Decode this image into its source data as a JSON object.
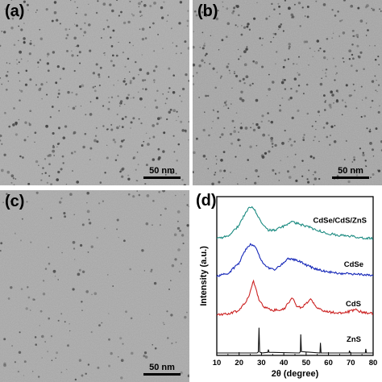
{
  "panels": [
    {
      "label": "(a)",
      "scale": "50 nm"
    },
    {
      "label": "(b)",
      "scale": "50 nm"
    },
    {
      "label": "(c)",
      "scale": "50 nm"
    }
  ],
  "chart": {
    "label": "(d)"
  },
  "chart_data": {
    "type": "line",
    "title": "",
    "xlabel": "2θ (degree)",
    "ylabel": "Intensity (a.u.)",
    "xlim": [
      10,
      80
    ],
    "xticks": [
      10,
      20,
      30,
      40,
      50,
      60,
      70,
      80
    ],
    "yticks_shown": false,
    "legend": "inline labels on right",
    "series": [
      {
        "name": "CdSe/CdS/ZnS",
        "color": "#1a8a80",
        "offset": 3.0,
        "points": [
          [
            10,
            0.05
          ],
          [
            15,
            0.12
          ],
          [
            20,
            0.45
          ],
          [
            23,
            0.85
          ],
          [
            25,
            1.0
          ],
          [
            27,
            0.92
          ],
          [
            30,
            0.5
          ],
          [
            33,
            0.3
          ],
          [
            36,
            0.3
          ],
          [
            40,
            0.42
          ],
          [
            43,
            0.55
          ],
          [
            46,
            0.5
          ],
          [
            50,
            0.42
          ],
          [
            55,
            0.3
          ],
          [
            60,
            0.2
          ],
          [
            65,
            0.15
          ],
          [
            70,
            0.12
          ],
          [
            75,
            0.08
          ],
          [
            80,
            0.05
          ]
        ]
      },
      {
        "name": "CdSe",
        "color": "#1426b8",
        "offset": 2.0,
        "points": [
          [
            10,
            0.05
          ],
          [
            15,
            0.12
          ],
          [
            20,
            0.45
          ],
          [
            23,
            0.85
          ],
          [
            25,
            1.0
          ],
          [
            27,
            0.95
          ],
          [
            30,
            0.5
          ],
          [
            33,
            0.3
          ],
          [
            36,
            0.25
          ],
          [
            40,
            0.45
          ],
          [
            42,
            0.58
          ],
          [
            44,
            0.55
          ],
          [
            47,
            0.5
          ],
          [
            50,
            0.38
          ],
          [
            55,
            0.25
          ],
          [
            60,
            0.18
          ],
          [
            65,
            0.14
          ],
          [
            70,
            0.12
          ],
          [
            75,
            0.1
          ],
          [
            80,
            0.06
          ]
        ]
      },
      {
        "name": "CdS",
        "color": "#cc2222",
        "offset": 1.0,
        "points": [
          [
            10,
            0.02
          ],
          [
            15,
            0.05
          ],
          [
            20,
            0.15
          ],
          [
            24,
            0.5
          ],
          [
            25.5,
            0.85
          ],
          [
            26.5,
            1.0
          ],
          [
            27.5,
            0.8
          ],
          [
            29,
            0.45
          ],
          [
            31,
            0.25
          ],
          [
            35,
            0.15
          ],
          [
            40,
            0.18
          ],
          [
            43,
            0.45
          ],
          [
            44,
            0.52
          ],
          [
            45.5,
            0.3
          ],
          [
            48,
            0.22
          ],
          [
            50,
            0.35
          ],
          [
            52,
            0.48
          ],
          [
            53.5,
            0.35
          ],
          [
            56,
            0.18
          ],
          [
            60,
            0.1
          ],
          [
            65,
            0.08
          ],
          [
            70,
            0.12
          ],
          [
            72,
            0.18
          ],
          [
            75,
            0.1
          ],
          [
            80,
            0.05
          ]
        ]
      },
      {
        "name": "ZnS",
        "color": "#111111",
        "offset": 0.0,
        "points": [
          [
            10,
            0.0
          ],
          [
            28,
            0.0
          ],
          [
            28.6,
            0.03
          ],
          [
            28.9,
            0.75
          ],
          [
            29.2,
            0.03
          ],
          [
            30,
            0.0
          ],
          [
            32.8,
            0.02
          ],
          [
            33.1,
            0.1
          ],
          [
            33.4,
            0.02
          ],
          [
            47,
            0.0
          ],
          [
            47.4,
            0.04
          ],
          [
            47.6,
            0.55
          ],
          [
            47.9,
            0.04
          ],
          [
            56.2,
            0.0
          ],
          [
            56.4,
            0.3
          ],
          [
            56.7,
            0.0
          ],
          [
            69.2,
            0.0
          ],
          [
            69.4,
            0.07
          ],
          [
            69.7,
            0.0
          ],
          [
            76.5,
            0.0
          ],
          [
            76.7,
            0.12
          ],
          [
            77,
            0.0
          ],
          [
            80,
            0.0
          ]
        ]
      }
    ]
  }
}
